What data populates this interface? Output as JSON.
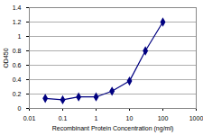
{
  "chart_data": {
    "type": "line",
    "x_label": "Recombinant Protein Concentration (ng/ml)",
    "y_label": "OD450",
    "x": [
      0.03,
      0.1,
      0.3,
      1,
      3,
      10,
      30,
      100
    ],
    "values": [
      0.14,
      0.12,
      0.16,
      0.16,
      0.24,
      0.38,
      0.8,
      1.2
    ],
    "color": "#000080",
    "marker": "diamond",
    "log": "x",
    "xlim": [
      0.01,
      1000
    ],
    "xticks": [
      0.01,
      0.1,
      1,
      10,
      100,
      1000
    ],
    "ylim": [
      0,
      1.4
    ],
    "yticks": [
      0,
      0.2,
      0.4,
      0.6,
      0.8,
      1,
      1.2,
      1.4
    ],
    "grid": true
  }
}
